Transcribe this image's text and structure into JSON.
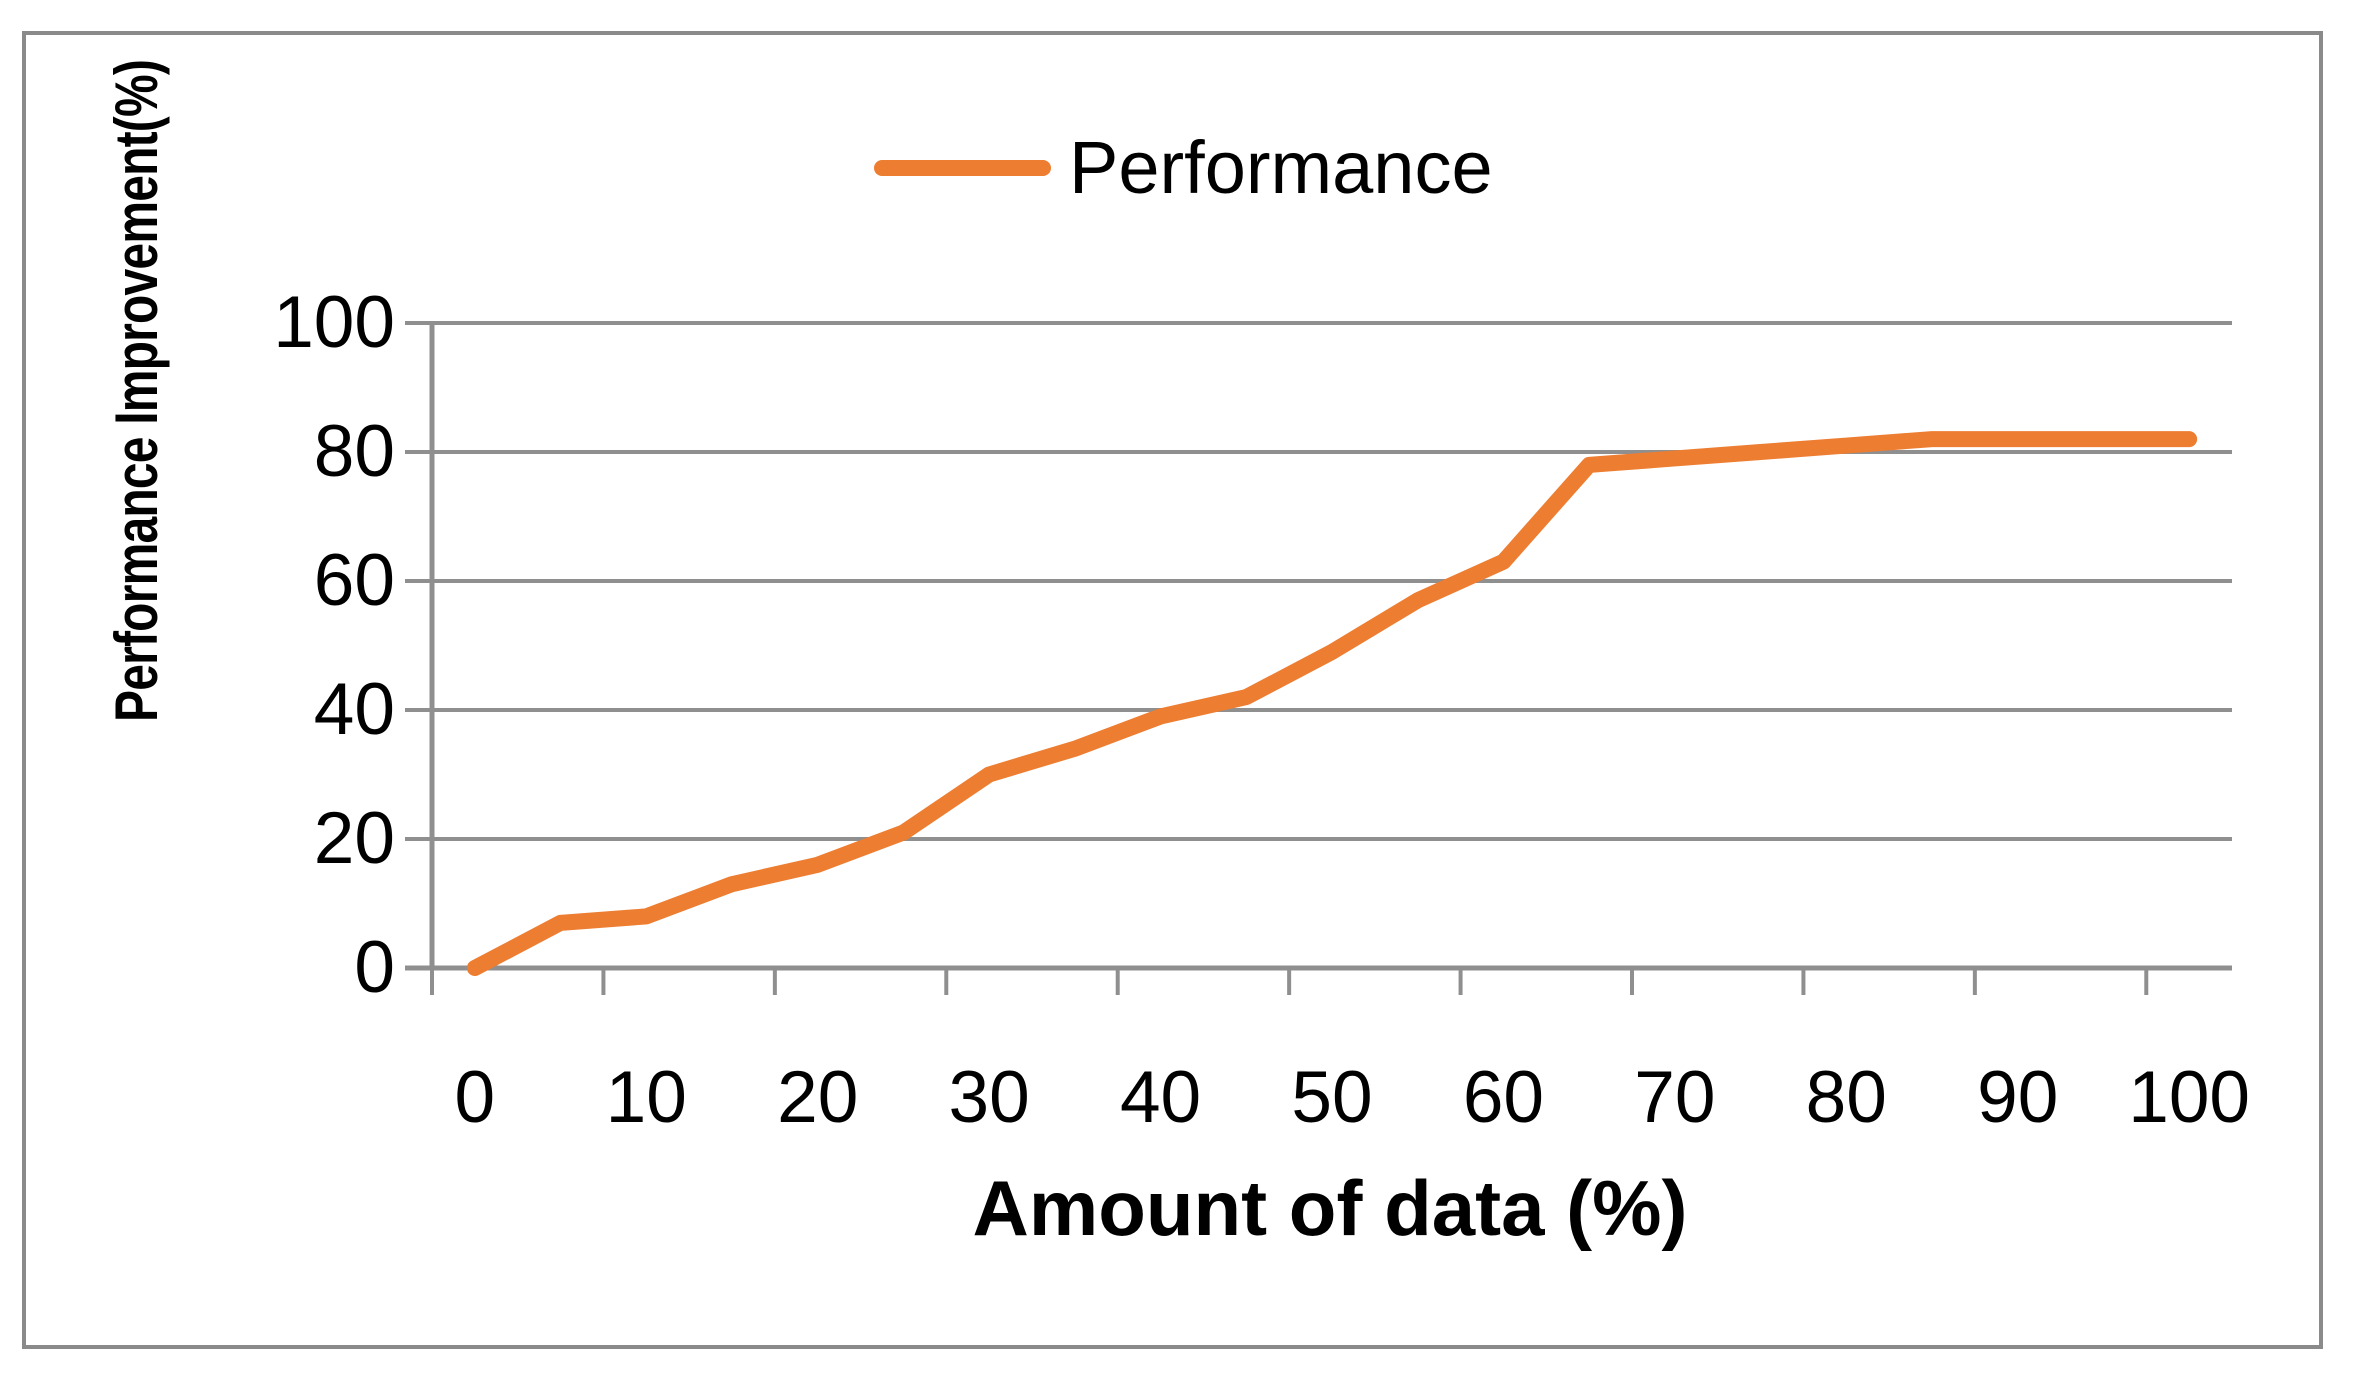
{
  "chart_data": {
    "type": "line",
    "title": "",
    "xlabel": "Amount of data (%)",
    "ylabel": "Performance Improvement(%)",
    "x": [
      0,
      5,
      10,
      15,
      20,
      25,
      30,
      35,
      40,
      45,
      50,
      55,
      60,
      65,
      70,
      75,
      80,
      85,
      90,
      95,
      100
    ],
    "series": [
      {
        "name": "Performance",
        "color": "#ED7D31",
        "values": [
          0,
          7,
          8,
          13,
          16,
          21,
          30,
          34,
          39,
          42,
          49,
          57,
          63,
          78,
          79,
          80,
          81,
          82,
          82,
          82,
          82
        ]
      }
    ],
    "x_tick_labels": [
      "0",
      "10",
      "20",
      "30",
      "40",
      "50",
      "60",
      "70",
      "80",
      "90",
      "100"
    ],
    "y_tick_labels": [
      "0",
      "20",
      "40",
      "60",
      "80",
      "100"
    ],
    "y_ticks": [
      0,
      20,
      40,
      60,
      80,
      100
    ],
    "xlim": [
      0,
      100
    ],
    "ylim": [
      0,
      100
    ],
    "grid": "horizontal",
    "legend_position": "top-center",
    "axis_type": "category-axis, points centered between boundary ticks",
    "colors": {
      "series_orange": "#ED7D31",
      "gridline_gray": "#8f8f8f",
      "axis_gray": "#8f8f8f",
      "border_gray": "#8a8a8a",
      "text_black": "#000000",
      "background": "#ffffff"
    }
  }
}
